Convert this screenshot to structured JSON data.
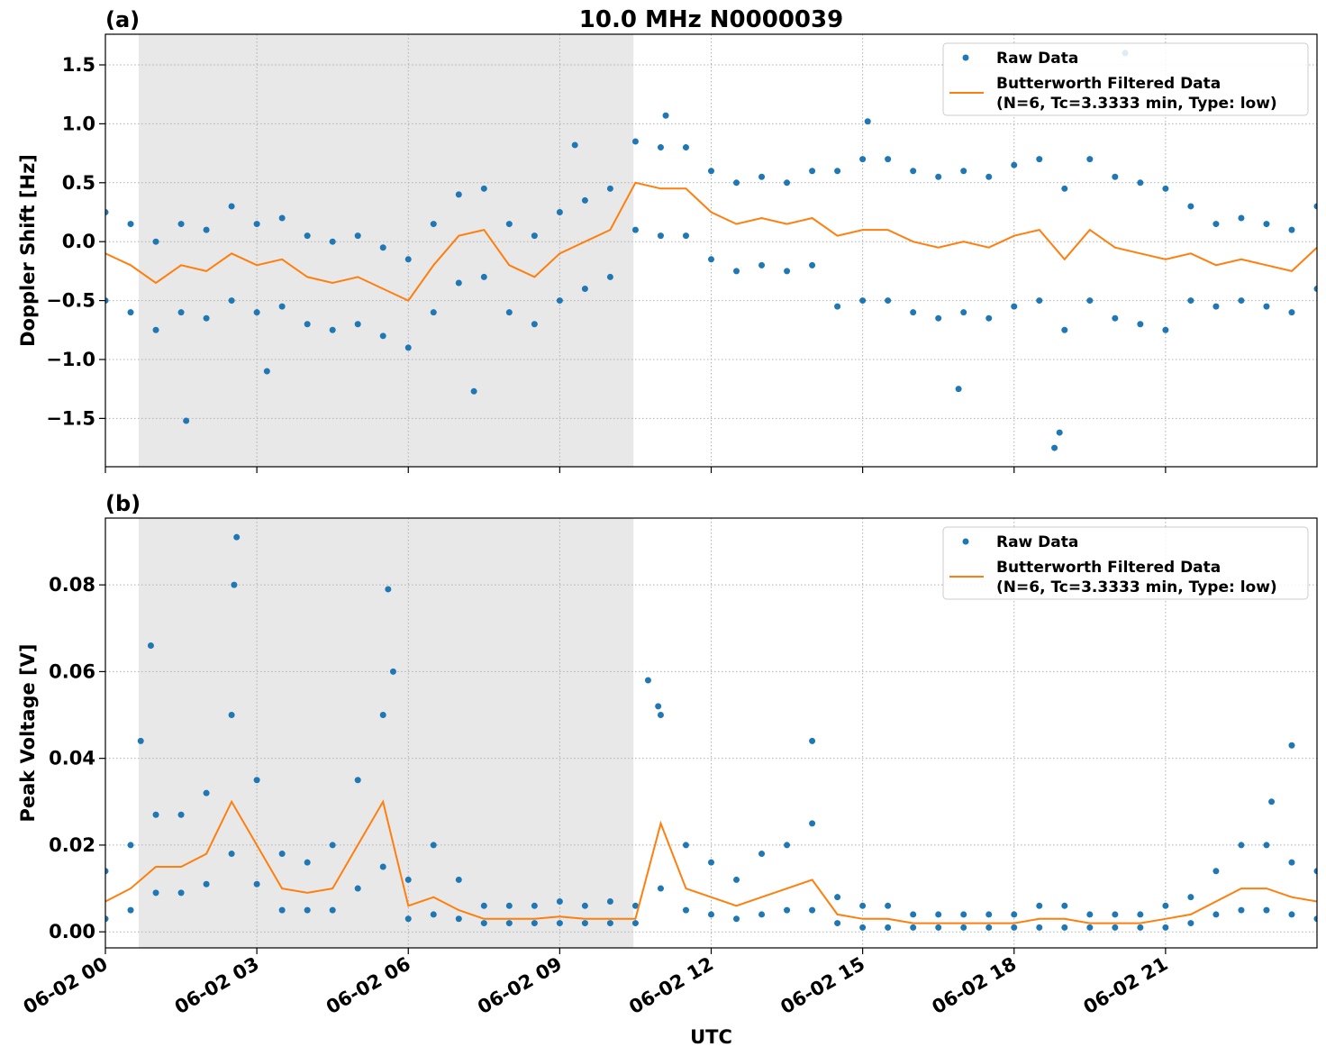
{
  "chart_data": [
    {
      "type": "scatter-line",
      "title": "10.0 MHz N0000039",
      "panel_label": "(a)",
      "y_label": "Doppler Shift [Hz]",
      "xlim": [
        0,
        24
      ],
      "ylim": [
        -1.91,
        1.76
      ],
      "xticks": [
        0,
        3,
        6,
        9,
        12,
        15,
        18,
        21
      ],
      "xtick_labels": false,
      "yticks": [
        {
          "value": -1.5,
          "label": "−1.5"
        },
        {
          "value": -1.0,
          "label": "−1.0"
        },
        {
          "value": -0.5,
          "label": "−0.5"
        },
        {
          "value": 0.0,
          "label": "0.0"
        },
        0.5,
        {
          "value": 1.0,
          "label": "1.0"
        },
        1.5
      ],
      "grid": true,
      "legend": "upper right",
      "shaded_region": [
        0.66,
        10.46
      ],
      "shade_color": "#e8e8e8",
      "series": [
        {
          "name": [
            "Raw Data"
          ],
          "marker": "dot",
          "color": "#1f77b4",
          "x": [
            0,
            0.5,
            1,
            1.5,
            2,
            2.5,
            3,
            3.5,
            4,
            4.5,
            5,
            5.5,
            6,
            6.5,
            7,
            7.5,
            8,
            8.5,
            9,
            9.5,
            10,
            10.5,
            11,
            11.5,
            12,
            12.5,
            13,
            13.5,
            14,
            14.5,
            15,
            15.5,
            16,
            16.5,
            17,
            17.5,
            18,
            18.5,
            19,
            19.5,
            20,
            20.5,
            21,
            21.5,
            22,
            22.5,
            23,
            23.5,
            24,
            0,
            0.5,
            1,
            1.5,
            2,
            2.5,
            3,
            3.5,
            4,
            4.5,
            5,
            5.5,
            6,
            6.5,
            7,
            7.5,
            8,
            8.5,
            9,
            9.5,
            10,
            10.5,
            11,
            11.5,
            12,
            12.5,
            13,
            13.5,
            14,
            14.5,
            15,
            15.5,
            16,
            16.5,
            17,
            17.5,
            18,
            18.5,
            19,
            19.5,
            20,
            20.5,
            21,
            21.5,
            22,
            22.5,
            23,
            23.5,
            24,
            1.6,
            3.2,
            7.3,
            9.3,
            11.1,
            15.1,
            18.8,
            18.9,
            20.2,
            16.9
          ],
          "values": [
            0.25,
            0.15,
            0.0,
            0.15,
            0.1,
            0.3,
            0.15,
            0.2,
            0.05,
            0.0,
            0.05,
            -0.05,
            -0.15,
            0.15,
            0.4,
            0.45,
            0.15,
            0.05,
            0.25,
            0.35,
            0.45,
            0.85,
            0.8,
            0.8,
            0.6,
            0.5,
            0.55,
            0.5,
            0.6,
            0.6,
            0.7,
            0.7,
            0.6,
            0.55,
            0.6,
            0.55,
            0.65,
            0.7,
            0.45,
            0.7,
            0.55,
            0.5,
            0.45,
            0.3,
            0.15,
            0.2,
            0.15,
            0.1,
            0.3,
            -0.5,
            -0.6,
            -0.75,
            -0.6,
            -0.65,
            -0.5,
            -0.6,
            -0.55,
            -0.7,
            -0.75,
            -0.7,
            -0.8,
            -0.9,
            -0.6,
            -0.35,
            -0.3,
            -0.6,
            -0.7,
            -0.5,
            -0.4,
            -0.3,
            0.1,
            0.05,
            0.05,
            -0.15,
            -0.25,
            -0.2,
            -0.25,
            -0.2,
            -0.55,
            -0.5,
            -0.5,
            -0.6,
            -0.65,
            -0.6,
            -0.65,
            -0.55,
            -0.5,
            -0.75,
            -0.5,
            -0.65,
            -0.7,
            -0.75,
            -0.5,
            -0.55,
            -0.5,
            -0.55,
            -0.6,
            -0.4,
            -1.52,
            -1.1,
            -1.27,
            0.82,
            1.07,
            1.02,
            -1.75,
            -1.62,
            1.6,
            -1.25
          ]
        },
        {
          "name": [
            "Butterworth Filtered Data",
            "(N=6, Tc=3.3333 min, Type: low)"
          ],
          "marker": "line",
          "color": "#ff7f0e",
          "x": [
            0,
            0.5,
            1,
            1.5,
            2,
            2.5,
            3,
            3.5,
            4,
            4.5,
            5,
            5.5,
            6,
            6.5,
            7,
            7.5,
            8,
            8.5,
            9,
            9.5,
            10,
            10.5,
            11,
            11.5,
            12,
            12.5,
            13,
            13.5,
            14,
            14.5,
            15,
            15.5,
            16,
            16.5,
            17,
            17.5,
            18,
            18.5,
            19,
            19.5,
            20,
            20.5,
            21,
            21.5,
            22,
            22.5,
            23,
            23.5,
            24
          ],
          "values": [
            -0.1,
            -0.2,
            -0.35,
            -0.2,
            -0.25,
            -0.1,
            -0.2,
            -0.15,
            -0.3,
            -0.35,
            -0.3,
            -0.4,
            -0.5,
            -0.2,
            0.05,
            0.1,
            -0.2,
            -0.3,
            -0.1,
            0.0,
            0.1,
            0.5,
            0.45,
            0.45,
            0.25,
            0.15,
            0.2,
            0.15,
            0.2,
            0.05,
            0.1,
            0.1,
            0.0,
            -0.05,
            0.0,
            -0.05,
            0.05,
            0.1,
            -0.15,
            0.1,
            -0.05,
            -0.1,
            -0.15,
            -0.1,
            -0.2,
            -0.15,
            -0.2,
            -0.25,
            -0.05
          ]
        }
      ]
    },
    {
      "type": "scatter-line",
      "panel_label": "(b)",
      "y_label": "Peak Voltage [V]",
      "x_label": "UTC",
      "xlim": [
        0,
        24
      ],
      "ylim": [
        -0.0037,
        0.0954
      ],
      "xticks": [
        {
          "value": 0,
          "label": "06-02 00"
        },
        {
          "value": 3,
          "label": "06-02 03"
        },
        {
          "value": 6,
          "label": "06-02 06"
        },
        {
          "value": 9,
          "label": "06-02 09"
        },
        {
          "value": 12,
          "label": "06-02 12"
        },
        {
          "value": 15,
          "label": "06-02 15"
        },
        {
          "value": 18,
          "label": "06-02 18"
        },
        {
          "value": 21,
          "label": "06-02 21"
        }
      ],
      "xtick_labels": true,
      "yticks": [
        {
          "value": 0.0,
          "label": "0.00"
        },
        {
          "value": 0.02,
          "label": "0.02"
        },
        {
          "value": 0.04,
          "label": "0.04"
        },
        {
          "value": 0.06,
          "label": "0.06"
        },
        {
          "value": 0.08,
          "label": "0.08"
        }
      ],
      "grid": true,
      "legend": "upper right",
      "shaded_region": [
        0.66,
        10.46
      ],
      "shade_color": "#e8e8e8",
      "series": [
        {
          "name": [
            "Raw Data"
          ],
          "marker": "dot",
          "color": "#1f77b4",
          "x": [
            0,
            0.5,
            1,
            1.5,
            2,
            2.5,
            3,
            3.5,
            4,
            4.5,
            5,
            5.5,
            6,
            6.5,
            7,
            7.5,
            8,
            8.5,
            9,
            9.5,
            10,
            10.5,
            11,
            11.5,
            12,
            12.5,
            13,
            13.5,
            14,
            14.5,
            15,
            15.5,
            16,
            16.5,
            17,
            17.5,
            18,
            18.5,
            19,
            19.5,
            20,
            20.5,
            21,
            21.5,
            22,
            22.5,
            23,
            23.5,
            24,
            0,
            0.5,
            1,
            1.5,
            2,
            2.5,
            3,
            3.5,
            4,
            4.5,
            5,
            5.5,
            6,
            6.5,
            7,
            7.5,
            8,
            8.5,
            9,
            9.5,
            10,
            10.5,
            11,
            11.5,
            12,
            12.5,
            13,
            13.5,
            14,
            14.5,
            15,
            15.5,
            16,
            16.5,
            17,
            17.5,
            18,
            18.5,
            19,
            19.5,
            20,
            20.5,
            21,
            21.5,
            22,
            22.5,
            23,
            23.5,
            24,
            0.7,
            0.9,
            2.6,
            2.55,
            5.6,
            5.7,
            10.75,
            10.95,
            14,
            23.5,
            23.1
          ],
          "values": [
            0.014,
            0.02,
            0.027,
            0.027,
            0.032,
            0.05,
            0.035,
            0.018,
            0.016,
            0.02,
            0.035,
            0.05,
            0.012,
            0.02,
            0.012,
            0.006,
            0.006,
            0.006,
            0.007,
            0.006,
            0.007,
            0.006,
            0.05,
            0.02,
            0.016,
            0.012,
            0.018,
            0.02,
            0.025,
            0.008,
            0.006,
            0.006,
            0.004,
            0.004,
            0.004,
            0.004,
            0.004,
            0.006,
            0.006,
            0.004,
            0.004,
            0.004,
            0.006,
            0.008,
            0.014,
            0.02,
            0.02,
            0.016,
            0.014,
            0.003,
            0.005,
            0.009,
            0.009,
            0.011,
            0.018,
            0.011,
            0.005,
            0.005,
            0.005,
            0.01,
            0.015,
            0.003,
            0.004,
            0.003,
            0.002,
            0.002,
            0.002,
            0.002,
            0.002,
            0.002,
            0.002,
            0.01,
            0.005,
            0.004,
            0.003,
            0.004,
            0.005,
            0.005,
            0.002,
            0.001,
            0.001,
            0.001,
            0.001,
            0.001,
            0.001,
            0.001,
            0.001,
            0.001,
            0.001,
            0.001,
            0.001,
            0.001,
            0.002,
            0.004,
            0.005,
            0.005,
            0.004,
            0.003,
            0.044,
            0.066,
            0.091,
            0.08,
            0.079,
            0.06,
            0.058,
            0.052,
            0.044,
            0.043,
            0.03
          ]
        },
        {
          "name": [
            "Butterworth Filtered Data",
            "(N=6, Tc=3.3333 min, Type: low)"
          ],
          "marker": "line",
          "color": "#ff7f0e",
          "x": [
            0,
            0.5,
            1,
            1.5,
            2,
            2.5,
            3,
            3.5,
            4,
            4.5,
            5,
            5.5,
            6,
            6.5,
            7,
            7.5,
            8,
            8.5,
            9,
            9.5,
            10,
            10.5,
            11,
            11.5,
            12,
            12.5,
            13,
            13.5,
            14,
            14.5,
            15,
            15.5,
            16,
            16.5,
            17,
            17.5,
            18,
            18.5,
            19,
            19.5,
            20,
            20.5,
            21,
            21.5,
            22,
            22.5,
            23,
            23.5,
            24
          ],
          "values": [
            0.007,
            0.01,
            0.015,
            0.015,
            0.018,
            0.03,
            0.02,
            0.01,
            0.009,
            0.01,
            0.02,
            0.03,
            0.006,
            0.008,
            0.005,
            0.003,
            0.003,
            0.003,
            0.0035,
            0.003,
            0.003,
            0.003,
            0.025,
            0.01,
            0.008,
            0.006,
            0.008,
            0.01,
            0.012,
            0.004,
            0.003,
            0.003,
            0.002,
            0.002,
            0.002,
            0.002,
            0.002,
            0.003,
            0.003,
            0.002,
            0.002,
            0.002,
            0.003,
            0.004,
            0.007,
            0.01,
            0.01,
            0.008,
            0.007
          ]
        }
      ]
    }
  ]
}
